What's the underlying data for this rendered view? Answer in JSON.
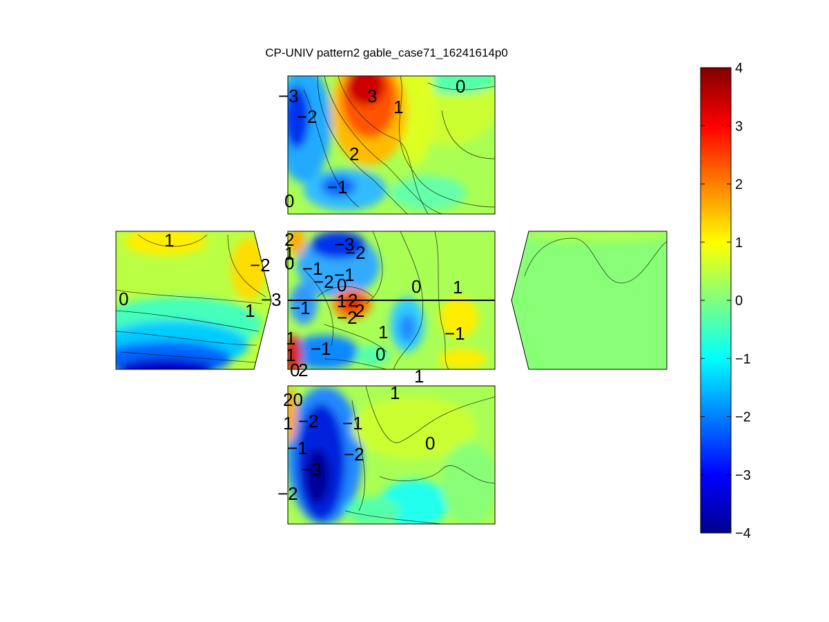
{
  "chart_data": {
    "type": "heatmap",
    "title": "CP-UNIV pattern2 gable_case71_16241614p0",
    "colormap": "jet",
    "clim": [
      -4,
      4
    ],
    "colorbar": {
      "ticks": [
        4,
        3,
        2,
        1,
        0,
        -1,
        -2,
        -3,
        -4
      ],
      "tick_labels": [
        "4",
        "3",
        "2",
        "1",
        "0",
        "−1",
        "−2",
        "−3",
        "−4"
      ],
      "placement": "right"
    },
    "panels": [
      {
        "name": "top-face",
        "contour_labels": [
          "−3",
          "−2",
          "3",
          "1",
          "0",
          "2",
          "−1",
          "0"
        ]
      },
      {
        "name": "left-face",
        "contour_labels": [
          "1",
          "−2",
          "0",
          "1",
          "−3"
        ]
      },
      {
        "name": "center-face",
        "contour_labels": [
          "2",
          "1",
          "0",
          "−3",
          "−2",
          "−1",
          "−2",
          "−1",
          "0",
          "0",
          "1",
          "1",
          "2",
          "−1",
          "−2",
          "2",
          "−1",
          "1",
          "1",
          "−1",
          "0",
          "1",
          "2",
          "0",
          "1"
        ]
      },
      {
        "name": "right-face",
        "contour_labels": []
      },
      {
        "name": "bottom-face",
        "contour_labels": [
          "1",
          "20",
          "−2",
          "1",
          "−1",
          "0",
          "−1",
          "−2",
          "−3",
          "−2"
        ]
      }
    ]
  }
}
